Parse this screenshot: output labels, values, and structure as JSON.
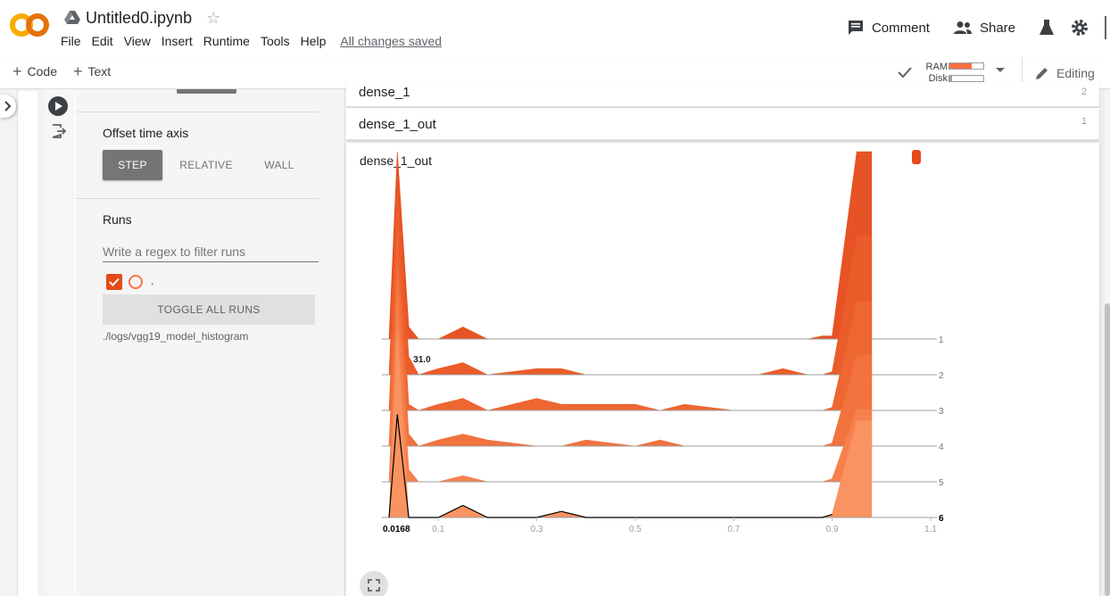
{
  "header": {
    "notebook_title": "Untitled0.ipynb",
    "menus": [
      "File",
      "Edit",
      "View",
      "Insert",
      "Runtime",
      "Tools",
      "Help"
    ],
    "save_status": "All changes saved",
    "comment_label": "Comment",
    "share_label": "Share"
  },
  "toolbar": {
    "code_label": "Code",
    "text_label": "Text",
    "ram_label": "RAM",
    "disk_label": "Disk",
    "ram_usage": 0.65,
    "disk_usage": 0.08,
    "editing_label": "Editing"
  },
  "sidebar": {
    "offset_title": "Offset time axis",
    "offset_modes": [
      "STEP",
      "RELATIVE",
      "WALL"
    ],
    "offset_selected": "STEP",
    "runs_title": "Runs",
    "regex_placeholder": "Write a regex to filter runs",
    "run_name": ".",
    "run_checked": true,
    "toggle_all_label": "TOGGLE ALL RUNS",
    "log_dir": "./logs/vgg19_model_histogram"
  },
  "tags": [
    {
      "name": "dense_1",
      "count": "2"
    },
    {
      "name": "dense_1_out",
      "count": "1"
    }
  ],
  "card": {
    "title": "dense_1_out"
  },
  "colors": {
    "accent": "#e64a19",
    "accent_light": "#ff7043",
    "brand_orange": "#f9ab00"
  },
  "chart_data": {
    "type": "histogram-offset",
    "title": "dense_1_out",
    "x_ticks": [
      "0.1",
      "0.3",
      "0.5",
      "0.7",
      "0.9",
      "1.1"
    ],
    "x_range": [
      0.0,
      1.1
    ],
    "hover_x": "0.0168",
    "hover_value": "31.0",
    "hover_step": "6",
    "steps": [
      1,
      2,
      3,
      4,
      5,
      6
    ],
    "step_labels": [
      "1",
      "2",
      "3",
      "4",
      "5",
      "6"
    ],
    "step_colors": [
      "#e64a19",
      "#e95420",
      "#ed5e27",
      "#f16b34",
      "#f57a44",
      "#f98d58"
    ],
    "bins_x": [
      0.0,
      0.0168,
      0.04,
      0.06,
      0.1,
      0.15,
      0.2,
      0.3,
      0.35,
      0.4,
      0.5,
      0.55,
      0.6,
      0.7,
      0.75,
      0.8,
      0.85,
      0.88,
      0.9,
      0.95,
      0.98
    ],
    "histograms": [
      {
        "step": 1,
        "counts": [
          0,
          31,
          2,
          0,
          0,
          2,
          0,
          0,
          0,
          0,
          0,
          0,
          0,
          0,
          0,
          0,
          0,
          0.5,
          0.5,
          31,
          31
        ]
      },
      {
        "step": 2,
        "counts": [
          0,
          31,
          3,
          0,
          1,
          2,
          0,
          1,
          1,
          0,
          0,
          0,
          0,
          0,
          0,
          1,
          0,
          0,
          0.5,
          23,
          23
        ]
      },
      {
        "step": 3,
        "counts": [
          0,
          31,
          1,
          0,
          1,
          2,
          0,
          2,
          1,
          1,
          1,
          0,
          1,
          0,
          0,
          0,
          0,
          0,
          0.5,
          18,
          18
        ]
      },
      {
        "step": 4,
        "counts": [
          0,
          31,
          2,
          0,
          1,
          2,
          1,
          0,
          0,
          1,
          0,
          1,
          0,
          0,
          0,
          0,
          0,
          0,
          0.5,
          15,
          15
        ]
      },
      {
        "step": 5,
        "counts": [
          0,
          31,
          2,
          0,
          0,
          1,
          0,
          0,
          0,
          0,
          0,
          0,
          0,
          0,
          0,
          0,
          0,
          0,
          0.5,
          12,
          12
        ]
      },
      {
        "step": 6,
        "counts": [
          0,
          31,
          0,
          0,
          0,
          2,
          0,
          0,
          1,
          0,
          0,
          0,
          0,
          0,
          0,
          0,
          0,
          0,
          0.5,
          16,
          16
        ]
      }
    ]
  }
}
